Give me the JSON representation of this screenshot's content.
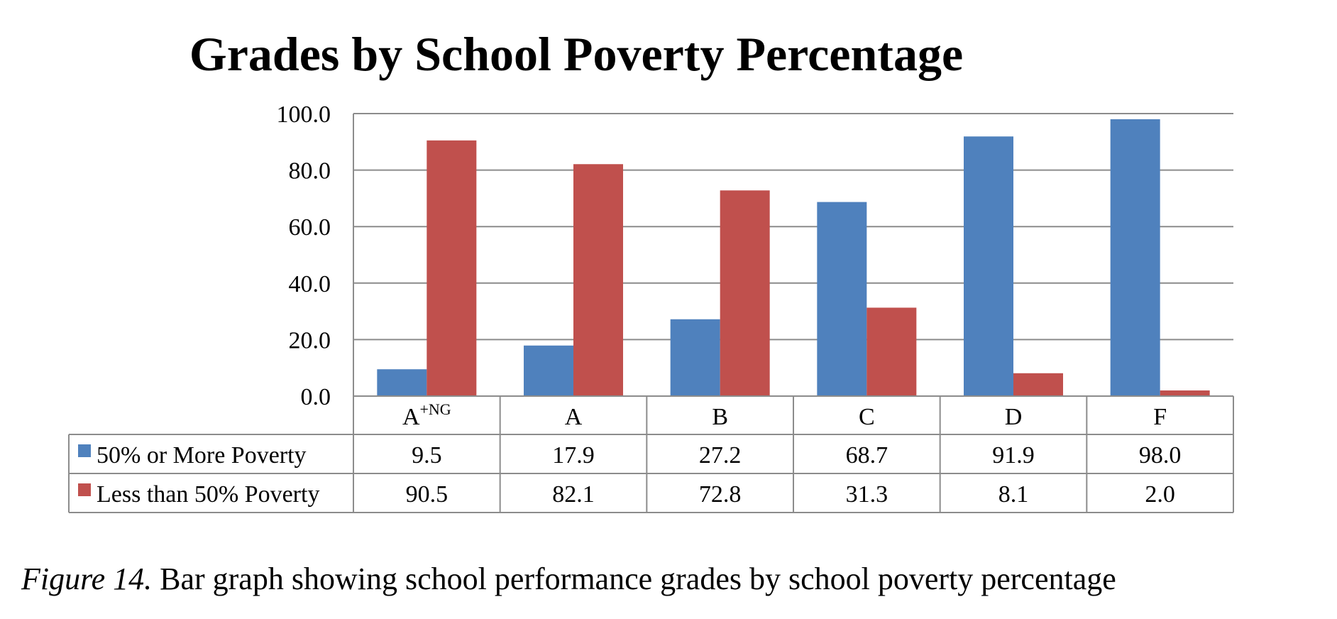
{
  "chart_data": {
    "type": "bar",
    "title": "Grades by School Poverty Percentage",
    "categories": [
      "A",
      "A",
      "B",
      "C",
      "D",
      "F"
    ],
    "category_superscripts": [
      "+NG",
      "",
      "",
      "",
      "",
      ""
    ],
    "series": [
      {
        "name": "50% or More Poverty",
        "color": "#4F81BD",
        "values": [
          9.5,
          17.9,
          27.2,
          68.7,
          91.9,
          98.0
        ],
        "value_labels": [
          "9.5",
          "17.9",
          "27.2",
          "68.7",
          "91.9",
          "98.0"
        ]
      },
      {
        "name": "Less than 50% Poverty",
        "color": "#C0504D",
        "values": [
          90.5,
          82.1,
          72.8,
          31.3,
          8.1,
          2.0
        ],
        "value_labels": [
          "90.5",
          "82.1",
          "72.8",
          "31.3",
          "8.1",
          "2.0"
        ]
      }
    ],
    "ylim": [
      0,
      100
    ],
    "yticks": [
      0,
      20,
      40,
      60,
      80,
      100
    ],
    "ytick_labels": [
      "0.0",
      "20.0",
      "40.0",
      "60.0",
      "80.0",
      "100.0"
    ],
    "grid": true,
    "legend": "data-table",
    "xlabel": "",
    "ylabel": ""
  },
  "caption": {
    "figure_label": "Figure 14.",
    "text": " Bar graph showing school performance grades by school poverty percentage"
  }
}
